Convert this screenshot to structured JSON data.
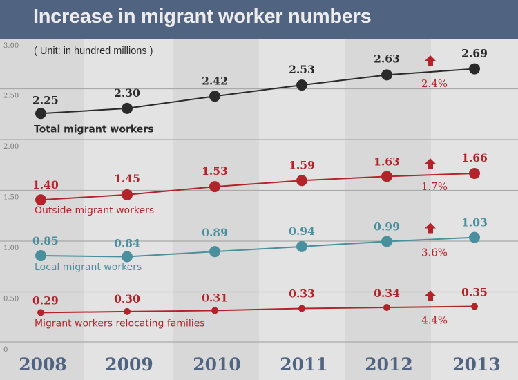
{
  "chart_data": {
    "type": "line",
    "title": "Increase in migrant worker numbers",
    "subtitle": "( Unit: in hundred millions )",
    "xlabel": "",
    "ylabel": "",
    "categories": [
      "2008",
      "2009",
      "2010",
      "2011",
      "2012",
      "2013"
    ],
    "ylim": [
      0,
      3.0
    ],
    "yticks": [
      "0",
      "0.50",
      "1.00",
      "1.50",
      "2.00",
      "2.50",
      "3.00"
    ],
    "ytick_values": [
      0,
      0.5,
      1.0,
      1.5,
      2.0,
      2.5,
      3.0
    ],
    "grid": true,
    "legend": "inline-labels",
    "series": [
      {
        "name": "Total migrant workers",
        "color": "#2a2a2a",
        "values": [
          2.25,
          2.3,
          2.42,
          2.53,
          2.63,
          2.69
        ],
        "labels": [
          "2.25",
          "2.30",
          "2.42",
          "2.53",
          "2.63",
          "2.69"
        ],
        "growth_2013": "2.4%",
        "marker": "large"
      },
      {
        "name": "Outside migrant workers",
        "color": "#b3242a",
        "values": [
          1.4,
          1.45,
          1.53,
          1.59,
          1.63,
          1.66
        ],
        "labels": [
          "1.40",
          "1.45",
          "1.53",
          "1.59",
          "1.63",
          "1.66"
        ],
        "growth_2013": "1.7%",
        "marker": "large"
      },
      {
        "name": "Local migrant workers",
        "color": "#4a8f9e",
        "values": [
          0.85,
          0.84,
          0.89,
          0.94,
          0.99,
          1.03
        ],
        "labels": [
          "0.85",
          "0.84",
          "0.89",
          "0.94",
          "0.99",
          "1.03"
        ],
        "growth_2013": "3.6%",
        "marker": "large"
      },
      {
        "name": "Migrant workers relocating families",
        "color": "#b3242a",
        "values": [
          0.29,
          0.3,
          0.31,
          0.33,
          0.34,
          0.35
        ],
        "labels": [
          "0.29",
          "0.30",
          "0.31",
          "0.33",
          "0.34",
          "0.35"
        ],
        "growth_2013": "4.4%",
        "marker": "small"
      }
    ],
    "annotations": [
      {
        "type": "up-arrow",
        "color": "#b3242a",
        "between": [
          "2012",
          "2013"
        ],
        "series": 0,
        "text": "2.4%"
      },
      {
        "type": "up-arrow",
        "color": "#b3242a",
        "between": [
          "2012",
          "2013"
        ],
        "series": 1,
        "text": "1.7%"
      },
      {
        "type": "up-arrow",
        "color": "#b3242a",
        "between": [
          "2012",
          "2013"
        ],
        "series": 2,
        "text": "3.6%"
      },
      {
        "type": "up-arrow",
        "color": "#b3242a",
        "between": [
          "2012",
          "2013"
        ],
        "series": 3,
        "text": "4.4%"
      }
    ]
  },
  "colors": {
    "header": "#506482",
    "band_dark": "#d8d8d8",
    "band_light": "#e3e3e3",
    "gridline": "#a9a9a9",
    "growth_arrow": "#b3242a"
  }
}
